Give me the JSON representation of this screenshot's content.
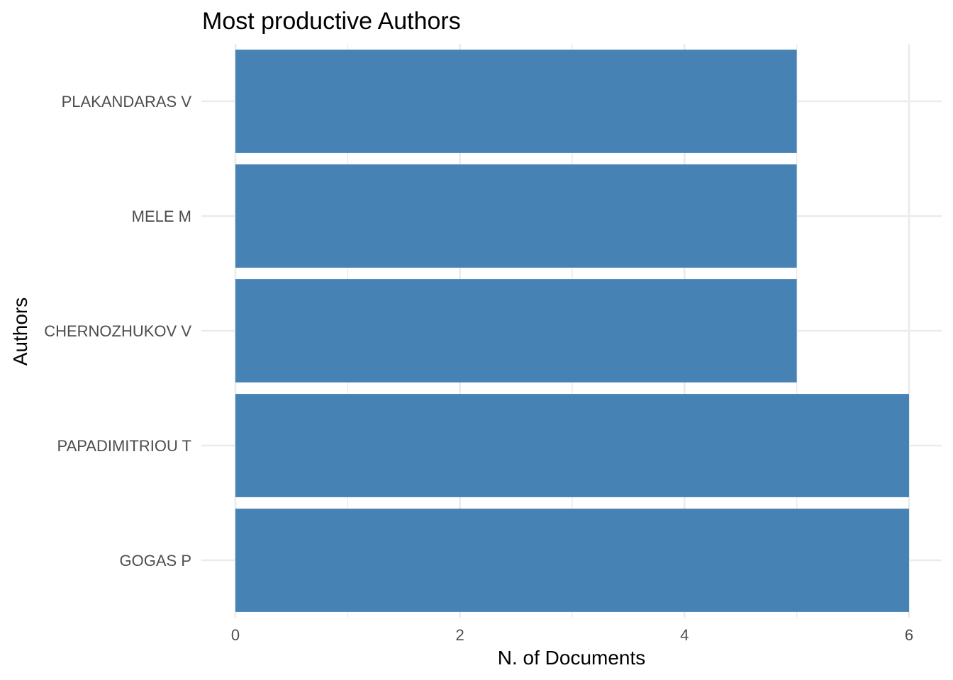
{
  "chart_data": {
    "type": "bar",
    "orientation": "horizontal",
    "title": "Most productive Authors",
    "xlabel": "N. of Documents",
    "ylabel": "Authors",
    "categories": [
      "GOGAS P",
      "PAPADIMITRIOU T",
      "CHERNOZHUKOV V",
      "MELE M",
      "PLAKANDARAS V"
    ],
    "values": [
      6,
      6,
      5,
      5,
      5
    ],
    "xlim": [
      0,
      6.3
    ],
    "xticks": [
      0,
      2,
      4,
      6
    ],
    "xtick_labels": [
      "0",
      "2",
      "4",
      "6"
    ],
    "grid": true,
    "bar_color": "#4682b4",
    "legend": "none"
  }
}
